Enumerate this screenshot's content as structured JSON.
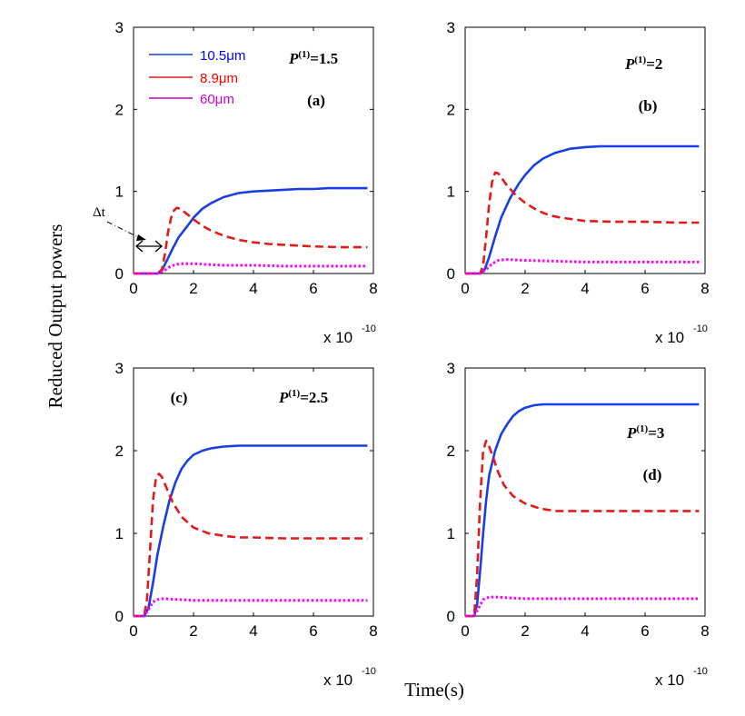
{
  "figure": {
    "ylabel": "Reduced Output powers",
    "xlabel": "Time(s)",
    "x_exponent_base": "x 10",
    "x_exponent_power": "-10",
    "delta_t_label": "Δt"
  },
  "legend": [
    {
      "label": "10.5μm",
      "color": "#0000ff"
    },
    {
      "label": "8.9μm",
      "color": "#ff0000"
    },
    {
      "label": "60μm",
      "color": "#cc00cc"
    }
  ],
  "colors": {
    "blue": "#1a3ee6",
    "red": "#e31a1a",
    "magenta": "#ff00ff"
  },
  "chart_data": [
    {
      "type": "line",
      "panel_label": "(a)",
      "annotation": {
        "base": "P",
        "sup": "(1)",
        "value": "=1.5"
      },
      "xlim": [
        0,
        8
      ],
      "ylim": [
        0,
        3
      ],
      "xticks": [
        0,
        2,
        4,
        6,
        8
      ],
      "yticks": [
        0,
        1,
        2,
        3
      ],
      "series": [
        {
          "name": "10.5μm",
          "style": "solid",
          "x": [
            0,
            0.8,
            0.95,
            1.1,
            1.3,
            1.5,
            1.8,
            2.0,
            2.3,
            2.6,
            3.0,
            3.5,
            4.0,
            4.5,
            5.0,
            5.5,
            6.0,
            6.5,
            7.0,
            7.8
          ],
          "y": [
            0,
            0,
            0.04,
            0.15,
            0.3,
            0.44,
            0.58,
            0.68,
            0.79,
            0.86,
            0.93,
            0.98,
            1.0,
            1.01,
            1.02,
            1.03,
            1.03,
            1.04,
            1.04,
            1.04
          ]
        },
        {
          "name": "8.9μm",
          "style": "dashed",
          "x": [
            0,
            0.8,
            0.95,
            1.05,
            1.15,
            1.25,
            1.35,
            1.45,
            1.55,
            1.8,
            2.0,
            2.3,
            2.6,
            3.0,
            3.5,
            4.0,
            4.5,
            5.0,
            5.5,
            6.0,
            7.0,
            7.8
          ],
          "y": [
            0,
            0,
            0.05,
            0.25,
            0.5,
            0.68,
            0.77,
            0.8,
            0.79,
            0.72,
            0.66,
            0.58,
            0.52,
            0.46,
            0.41,
            0.38,
            0.36,
            0.35,
            0.34,
            0.33,
            0.32,
            0.32
          ]
        },
        {
          "name": "60μm",
          "style": "dotted",
          "x": [
            0,
            0.8,
            1.0,
            1.2,
            1.4,
            1.6,
            2.0,
            2.5,
            3.0,
            4.0,
            5.0,
            6.0,
            7.0,
            7.8
          ],
          "y": [
            0,
            0,
            0.03,
            0.08,
            0.11,
            0.12,
            0.12,
            0.11,
            0.1,
            0.1,
            0.09,
            0.09,
            0.09,
            0.09
          ]
        }
      ]
    },
    {
      "type": "line",
      "panel_label": "(b)",
      "annotation": {
        "base": "P",
        "sup": "(1)",
        "value": "=2"
      },
      "xlim": [
        0,
        8
      ],
      "ylim": [
        0,
        3
      ],
      "xticks": [
        0,
        2,
        4,
        6,
        8
      ],
      "yticks": [
        0,
        1,
        2,
        3
      ],
      "series": [
        {
          "name": "10.5μm",
          "style": "solid",
          "x": [
            0,
            0.5,
            0.65,
            0.8,
            1.0,
            1.2,
            1.5,
            1.8,
            2.0,
            2.3,
            2.6,
            3.0,
            3.5,
            4.0,
            4.5,
            5.0,
            6.0,
            7.0,
            7.8
          ],
          "y": [
            0,
            0,
            0.05,
            0.2,
            0.45,
            0.68,
            0.92,
            1.1,
            1.2,
            1.32,
            1.4,
            1.47,
            1.52,
            1.54,
            1.55,
            1.55,
            1.55,
            1.55,
            1.55
          ]
        },
        {
          "name": "8.9μm",
          "style": "dashed",
          "x": [
            0,
            0.5,
            0.6,
            0.7,
            0.8,
            0.9,
            1.0,
            1.1,
            1.2,
            1.4,
            1.7,
            2.0,
            2.4,
            2.8,
            3.2,
            3.6,
            4.0,
            5.0,
            6.0,
            7.0,
            7.8
          ],
          "y": [
            0,
            0,
            0.1,
            0.45,
            0.85,
            1.12,
            1.23,
            1.22,
            1.17,
            1.07,
            0.95,
            0.86,
            0.77,
            0.71,
            0.68,
            0.66,
            0.64,
            0.63,
            0.63,
            0.62,
            0.62
          ]
        },
        {
          "name": "60μm",
          "style": "dotted",
          "x": [
            0,
            0.5,
            0.7,
            0.9,
            1.1,
            1.4,
            2.0,
            3.0,
            4.0,
            5.0,
            6.0,
            7.0,
            7.8
          ],
          "y": [
            0,
            0,
            0.05,
            0.12,
            0.16,
            0.17,
            0.16,
            0.15,
            0.14,
            0.14,
            0.14,
            0.14,
            0.14
          ]
        }
      ]
    },
    {
      "type": "line",
      "panel_label": "(c)",
      "annotation": {
        "base": "P",
        "sup": "(1)",
        "value": "=2.5"
      },
      "xlim": [
        0,
        8
      ],
      "ylim": [
        0,
        3
      ],
      "xticks": [
        0,
        2,
        4,
        6,
        8
      ],
      "yticks": [
        0,
        1,
        2,
        3
      ],
      "series": [
        {
          "name": "10.5μm",
          "style": "solid",
          "x": [
            0,
            0.35,
            0.5,
            0.65,
            0.8,
            1.0,
            1.2,
            1.4,
            1.6,
            1.8,
            2.0,
            2.3,
            2.6,
            3.0,
            3.5,
            4.0,
            5.0,
            6.0,
            7.0,
            7.8
          ],
          "y": [
            0,
            0,
            0.1,
            0.4,
            0.75,
            1.1,
            1.4,
            1.62,
            1.78,
            1.88,
            1.95,
            2.0,
            2.03,
            2.05,
            2.06,
            2.06,
            2.06,
            2.06,
            2.06,
            2.06
          ]
        },
        {
          "name": "8.9μm",
          "style": "dashed",
          "x": [
            0,
            0.35,
            0.45,
            0.55,
            0.65,
            0.75,
            0.85,
            0.95,
            1.1,
            1.3,
            1.6,
            2.0,
            2.5,
            3.0,
            3.5,
            4.0,
            5.0,
            6.0,
            7.0,
            7.8
          ],
          "y": [
            0,
            0,
            0.2,
            0.8,
            1.4,
            1.68,
            1.72,
            1.68,
            1.55,
            1.38,
            1.2,
            1.07,
            1.0,
            0.97,
            0.95,
            0.95,
            0.94,
            0.94,
            0.94,
            0.94
          ]
        },
        {
          "name": "60μm",
          "style": "dotted",
          "x": [
            0,
            0.35,
            0.5,
            0.65,
            0.8,
            1.0,
            1.5,
            2.0,
            3.0,
            4.0,
            5.0,
            6.0,
            7.0,
            7.8
          ],
          "y": [
            0,
            0,
            0.08,
            0.17,
            0.2,
            0.21,
            0.2,
            0.19,
            0.19,
            0.19,
            0.19,
            0.19,
            0.19,
            0.19
          ]
        }
      ]
    },
    {
      "type": "line",
      "panel_label": "(d)",
      "annotation": {
        "base": "P",
        "sup": "(1)",
        "value": "=3"
      },
      "xlim": [
        0,
        8
      ],
      "ylim": [
        0,
        3
      ],
      "xticks": [
        0,
        2,
        4,
        6,
        8
      ],
      "yticks": [
        0,
        1,
        2,
        3
      ],
      "series": [
        {
          "name": "10.5μm",
          "style": "solid",
          "x": [
            0,
            0.3,
            0.4,
            0.5,
            0.6,
            0.7,
            0.8,
            1.0,
            1.2,
            1.4,
            1.6,
            1.8,
            2.0,
            2.3,
            2.6,
            3.0,
            4.0,
            5.0,
            6.0,
            7.0,
            7.8
          ],
          "y": [
            0,
            0,
            0.15,
            0.55,
            1.0,
            1.4,
            1.7,
            2.0,
            2.2,
            2.32,
            2.42,
            2.48,
            2.52,
            2.55,
            2.56,
            2.56,
            2.56,
            2.56,
            2.56,
            2.56,
            2.56
          ]
        },
        {
          "name": "8.9μm",
          "style": "dashed",
          "x": [
            0,
            0.3,
            0.4,
            0.5,
            0.6,
            0.7,
            0.8,
            0.95,
            1.1,
            1.3,
            1.6,
            2.0,
            2.5,
            3.0,
            3.5,
            4.0,
            5.0,
            6.0,
            7.0,
            7.8
          ],
          "y": [
            0,
            0,
            0.5,
            1.4,
            2.0,
            2.12,
            2.05,
            1.9,
            1.74,
            1.58,
            1.45,
            1.36,
            1.3,
            1.27,
            1.27,
            1.27,
            1.27,
            1.27,
            1.27,
            1.27
          ]
        },
        {
          "name": "60μm",
          "style": "dotted",
          "x": [
            0,
            0.3,
            0.45,
            0.6,
            0.8,
            1.0,
            1.5,
            2.0,
            3.0,
            4.0,
            5.0,
            6.0,
            7.0,
            7.8
          ],
          "y": [
            0,
            0,
            0.1,
            0.2,
            0.23,
            0.23,
            0.22,
            0.21,
            0.21,
            0.21,
            0.21,
            0.21,
            0.21,
            0.21
          ]
        }
      ]
    }
  ]
}
